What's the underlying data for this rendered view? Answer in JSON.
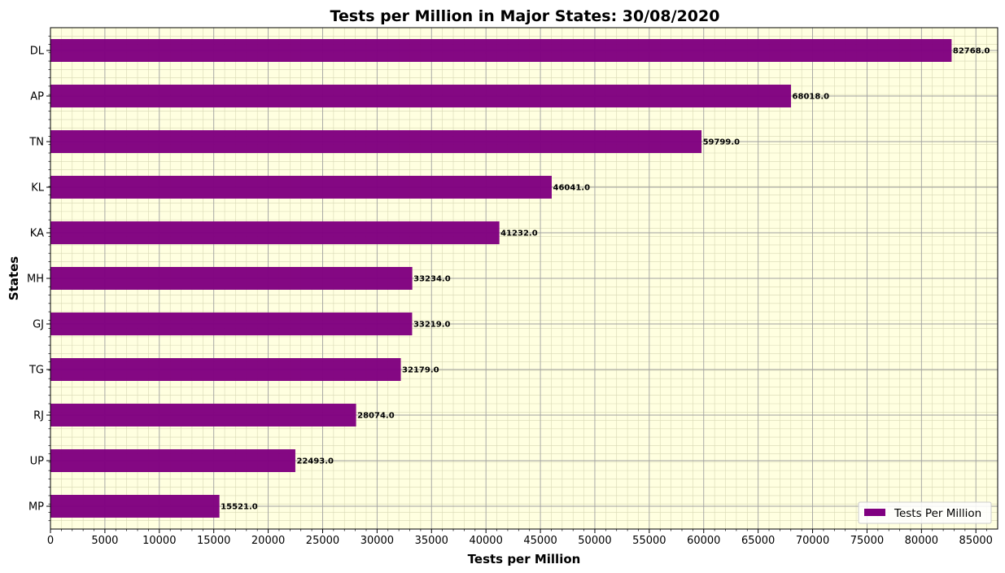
{
  "chart_data": {
    "type": "bar",
    "orientation": "horizontal",
    "title": "Tests per Million in Major States: 30/08/2020",
    "xlabel": "Tests per Million",
    "ylabel": "States",
    "categories": [
      "DL",
      "AP",
      "TN",
      "KL",
      "KA",
      "MH",
      "GJ",
      "TG",
      "RJ",
      "UP",
      "MP"
    ],
    "series": [
      {
        "name": "Tests Per Million",
        "values": [
          82768.0,
          68018.0,
          59799.0,
          46041.0,
          41232.0,
          33234.0,
          33219.0,
          32179.0,
          28074.0,
          22493.0,
          15521.0
        ],
        "data_labels": [
          "82768.0",
          "68018.0",
          "59799.0",
          "46041.0",
          "41232.0",
          "33234.0",
          "33219.0",
          "32179.0",
          "28074.0",
          "22493.0",
          "15521.0"
        ]
      }
    ],
    "xlim": [
      0,
      87000
    ],
    "xticks": [
      0,
      5000,
      10000,
      15000,
      20000,
      25000,
      30000,
      35000,
      40000,
      45000,
      50000,
      55000,
      60000,
      65000,
      70000,
      75000,
      80000,
      85000
    ],
    "xtick_labels": [
      "0",
      "5000",
      "10000",
      "15000",
      "20000",
      "25000",
      "30000",
      "35000",
      "40000",
      "45000",
      "50000",
      "55000",
      "60000",
      "65000",
      "70000",
      "75000",
      "80000",
      "85000"
    ],
    "grid": true,
    "minor_grid": true,
    "legend_position": "lower-right",
    "colors": {
      "bar": "#800080",
      "plot_background": "#ffffe0",
      "major_grid": "#a0a0a0",
      "minor_grid": "#d8d8b4"
    }
  }
}
